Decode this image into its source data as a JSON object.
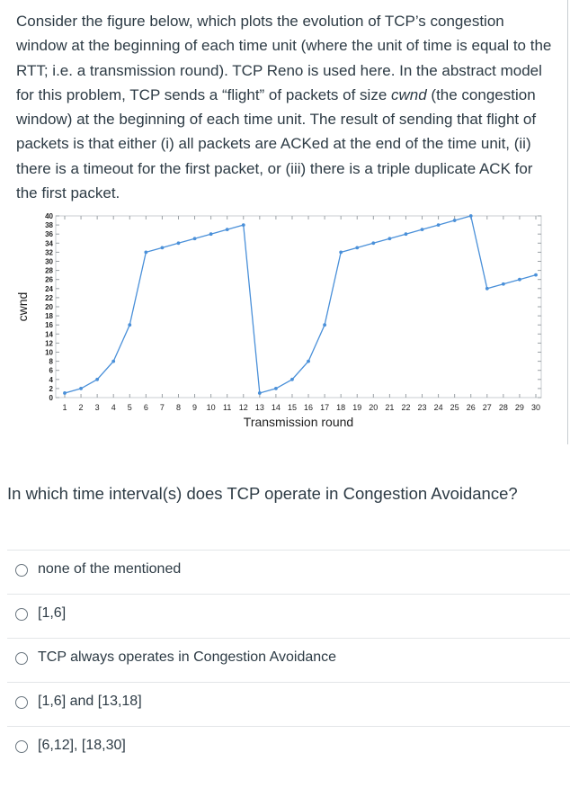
{
  "question": {
    "part1": "Consider the figure below, which plots the evolution of TCP’s congestion window at the beginning of each time unit (where the unit of time is equal to the RTT; i.e. a transmission round). TCP Reno is used here. In the abstract model for this problem, TCP sends a “flight” of packets of size ",
    "cwnd_term": "cwnd",
    "part2": " (the congestion window) at the beginning of each time unit. The result of sending that flight of packets is that either (i) all packets are ACKed at the end of the time unit, (ii) there is a timeout for the first packet, or (iii) there is a triple duplicate ACK for the first packet.",
    "prompt": "In which time interval(s) does TCP operate in Congestion Avoidance?"
  },
  "chart_data": {
    "type": "line",
    "xlabel": "Transmission round",
    "ylabel": "cwnd",
    "xlim": [
      1,
      30
    ],
    "ylim": [
      0,
      40
    ],
    "x_ticks": [
      1,
      2,
      3,
      4,
      5,
      6,
      7,
      8,
      9,
      10,
      11,
      12,
      13,
      14,
      15,
      16,
      17,
      18,
      19,
      20,
      21,
      22,
      23,
      24,
      25,
      26,
      27,
      28,
      29,
      30
    ],
    "y_ticks": [
      0,
      2,
      4,
      6,
      8,
      10,
      12,
      14,
      16,
      18,
      20,
      22,
      24,
      26,
      28,
      30,
      32,
      34,
      36,
      38,
      40
    ],
    "grid": false,
    "color": "#4a90d9",
    "x": [
      1,
      2,
      3,
      4,
      5,
      6,
      7,
      8,
      9,
      10,
      11,
      12,
      13,
      14,
      15,
      16,
      17,
      18,
      19,
      20,
      21,
      22,
      23,
      24,
      25,
      26,
      27,
      28,
      29,
      30
    ],
    "values": [
      1,
      2,
      4,
      8,
      16,
      32,
      33,
      34,
      35,
      36,
      37,
      38,
      1,
      2,
      4,
      8,
      16,
      32,
      33,
      34,
      35,
      36,
      37,
      38,
      39,
      40,
      24,
      25,
      26,
      27
    ]
  },
  "answers": [
    {
      "label": "none of the mentioned"
    },
    {
      "label": "[1,6]"
    },
    {
      "label": "TCP always operates in Congestion Avoidance"
    },
    {
      "label": "[1,6] and [13,18]"
    },
    {
      "label": "[6,12], [18,30]"
    }
  ]
}
